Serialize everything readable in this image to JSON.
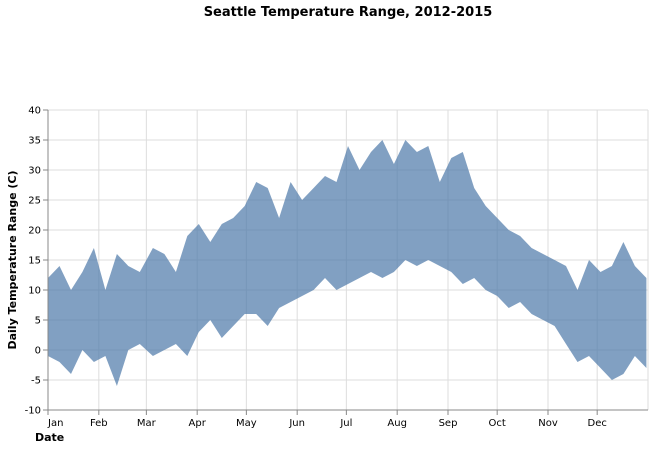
{
  "chart_data": {
    "type": "area",
    "title": "Seattle Temperature Range, 2012-2015",
    "xlabel": "Date",
    "ylabel": "Daily Temperature Range (C)",
    "ylim": [
      -10,
      40
    ],
    "y_ticks": [
      -10,
      -5,
      0,
      5,
      10,
      15,
      20,
      25,
      30,
      35,
      40
    ],
    "x_ticks": [
      "Jan",
      "Feb",
      "Mar",
      "Apr",
      "May",
      "Jun",
      "Jul",
      "Aug",
      "Sep",
      "Oct",
      "Nov",
      "Dec"
    ],
    "grid": true,
    "colors": {
      "band": "#4c78a8"
    },
    "series": [
      {
        "x": [
          "Jan 1",
          "Jan 8",
          "Jan 15",
          "Jan 22",
          "Jan 29",
          "Feb 5",
          "Feb 12",
          "Feb 19",
          "Feb 26",
          "Mar 5",
          "Mar 12",
          "Mar 19",
          "Mar 26",
          "Apr 2",
          "Apr 9",
          "Apr 16",
          "Apr 23",
          "Apr 30",
          "May 7",
          "May 14",
          "May 21",
          "May 28",
          "Jun 4",
          "Jun 11",
          "Jun 18",
          "Jun 25",
          "Jul 2",
          "Jul 9",
          "Jul 16",
          "Jul 23",
          "Jul 30",
          "Aug 6",
          "Aug 13",
          "Aug 20",
          "Aug 27",
          "Sep 3",
          "Sep 10",
          "Sep 17",
          "Sep 24",
          "Oct 1",
          "Oct 8",
          "Oct 15",
          "Oct 22",
          "Oct 29",
          "Nov 5",
          "Nov 12",
          "Nov 19",
          "Nov 26",
          "Dec 3",
          "Dec 10",
          "Dec 17",
          "Dec 24",
          "Dec 31"
        ],
        "low": [
          -1,
          -2,
          -4,
          0,
          -2,
          -1,
          -6,
          0,
          1,
          -1,
          0,
          1,
          -1,
          3,
          5,
          2,
          4,
          6,
          6,
          4,
          7,
          8,
          9,
          10,
          12,
          10,
          11,
          12,
          13,
          12,
          13,
          15,
          14,
          15,
          14,
          13,
          11,
          12,
          10,
          9,
          7,
          8,
          6,
          5,
          4,
          1,
          -2,
          -1,
          -3,
          -5,
          -4,
          -1,
          -3
        ],
        "high": [
          12,
          14,
          10,
          13,
          17,
          10,
          16,
          14,
          13,
          17,
          16,
          13,
          19,
          21,
          18,
          21,
          22,
          24,
          28,
          27,
          22,
          28,
          25,
          27,
          29,
          28,
          34,
          30,
          33,
          35,
          31,
          35,
          33,
          34,
          28,
          32,
          33,
          27,
          24,
          22,
          20,
          19,
          17,
          16,
          15,
          14,
          10,
          15,
          13,
          14,
          18,
          14,
          12
        ]
      }
    ]
  }
}
